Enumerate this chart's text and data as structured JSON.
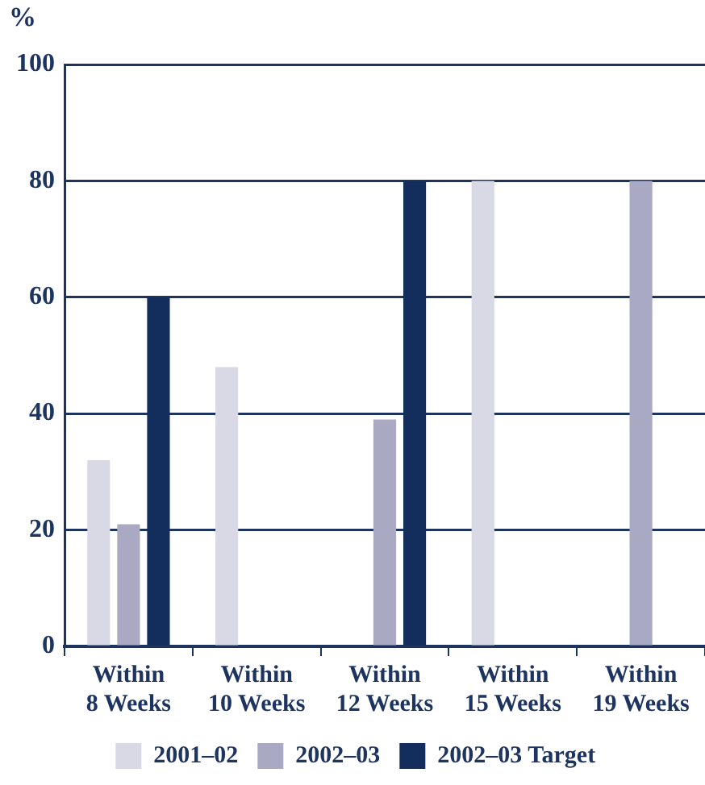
{
  "chart_data": {
    "type": "bar",
    "ylabel": "%",
    "categories": [
      "Within\n8 Weeks",
      "Within\n10 Weeks",
      "Within\n12 Weeks",
      "Within\n15 Weeks",
      "Within\n19 Weeks"
    ],
    "series": [
      {
        "name": "2001–02",
        "color": "#d9d8e5",
        "values": [
          32,
          48,
          null,
          80,
          null
        ]
      },
      {
        "name": "2002–03",
        "color": "#a9a9c4",
        "values": [
          21,
          null,
          39,
          null,
          80
        ]
      },
      {
        "name": "2002–03 Target",
        "color": "#132e5c",
        "values": [
          60,
          null,
          80,
          null,
          null
        ]
      }
    ],
    "ylim": [
      0,
      100
    ],
    "yticks": [
      0,
      20,
      40,
      60,
      80,
      100
    ],
    "grid": "y",
    "legend": "bottom"
  }
}
